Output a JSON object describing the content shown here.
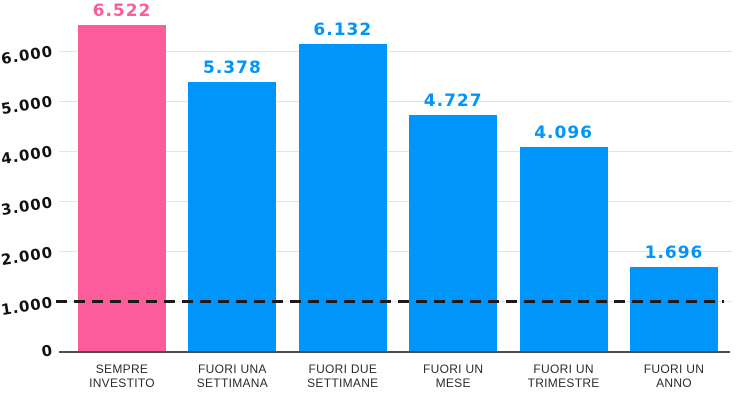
{
  "chart_data": {
    "type": "bar",
    "title": "",
    "categories": [
      "SEMPRE INVESTITO",
      "FUORI UNA SETTIMANA",
      "FUORI DUE SETTIMANE",
      "FUORI UN MESE",
      "FUORI UN TRIMESTRE",
      "FUORI UN ANNO"
    ],
    "category_lines": [
      [
        "SEMPRE",
        "INVESTITO"
      ],
      [
        "FUORI UNA",
        "SETTIMANA"
      ],
      [
        "FUORI DUE",
        "SETTIMANE"
      ],
      [
        "FUORI UN",
        "MESE"
      ],
      [
        "FUORI UN",
        "TRIMESTRE"
      ],
      [
        "FUORI UN",
        "ANNO"
      ]
    ],
    "values": [
      6522,
      5378,
      6132,
      4727,
      4096,
      1696
    ],
    "value_labels": [
      "6.522",
      "5.378",
      "6.132",
      "4.727",
      "4.096",
      "1.696"
    ],
    "highlight_index": 0,
    "y_ticks": [
      {
        "value": 0,
        "label": "0"
      },
      {
        "value": 1000,
        "label": "1.000"
      },
      {
        "value": 2000,
        "label": "2.000"
      },
      {
        "value": 3000,
        "label": "3.000"
      },
      {
        "value": 4000,
        "label": "4.000"
      },
      {
        "value": 5000,
        "label": "5.000"
      },
      {
        "value": 6000,
        "label": "6.000"
      }
    ],
    "ylim": [
      0,
      6522
    ],
    "grid": true,
    "legend": false,
    "reference_line": {
      "value": 1000,
      "style": "dashed"
    },
    "colors": {
      "highlight_bar": "#FC5C9C",
      "default_bar": "#0095FA",
      "gridline": "#E3E3E3",
      "axis_line": "#4D4D4D",
      "dashed_line": "#1A1A1A",
      "tick_text": "#111111",
      "category_text": "#2B2B2B"
    }
  }
}
